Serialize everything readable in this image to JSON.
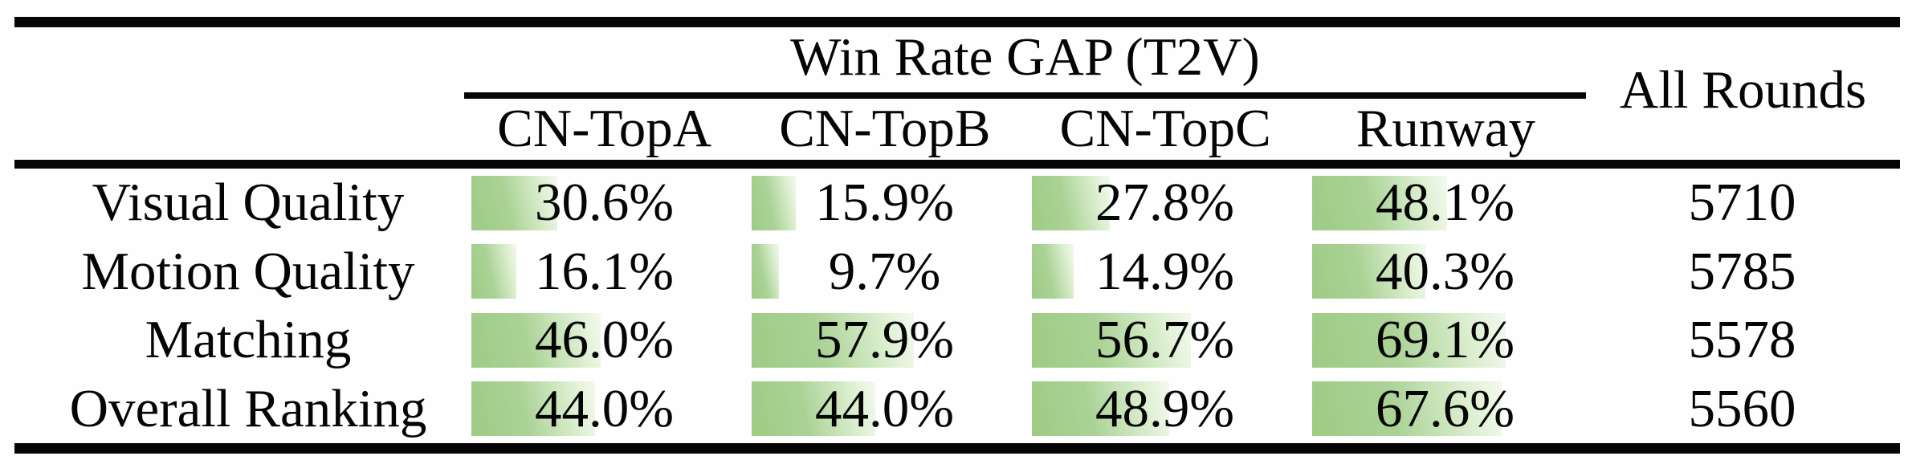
{
  "table": {
    "group_header": "Win Rate GAP (T2V)",
    "all_rounds_header": "All Rounds",
    "columns": [
      "CN-TopA",
      "CN-TopB",
      "CN-TopC",
      "Runway"
    ],
    "rows": [
      {
        "label": "Visual Quality",
        "cells": [
          {
            "text": "30.6%",
            "pct": 30.6
          },
          {
            "text": "15.9%",
            "pct": 15.9
          },
          {
            "text": "27.8%",
            "pct": 27.8
          },
          {
            "text": "48.1%",
            "pct": 48.1
          }
        ],
        "all_rounds": "5710"
      },
      {
        "label": "Motion Quality",
        "cells": [
          {
            "text": "16.1%",
            "pct": 16.1
          },
          {
            "text": "9.7%",
            "pct": 9.7
          },
          {
            "text": "14.9%",
            "pct": 14.9
          },
          {
            "text": "40.3%",
            "pct": 40.3
          }
        ],
        "all_rounds": "5785"
      },
      {
        "label": "Matching",
        "cells": [
          {
            "text": "46.0%",
            "pct": 46.0
          },
          {
            "text": "57.9%",
            "pct": 57.9
          },
          {
            "text": "56.7%",
            "pct": 56.7
          },
          {
            "text": "69.1%",
            "pct": 69.1
          }
        ],
        "all_rounds": "5578"
      },
      {
        "label": "Overall Ranking",
        "cells": [
          {
            "text": "44.0%",
            "pct": 44.0
          },
          {
            "text": "44.0%",
            "pct": 44.0
          },
          {
            "text": "48.9%",
            "pct": 48.9
          },
          {
            "text": "67.6%",
            "pct": 67.6
          }
        ],
        "all_rounds": "5560"
      }
    ],
    "bar_color": "#9ecb84",
    "bar_fade_color": "#f4f9f0",
    "rule_color": "#060606",
    "text_color": "#050505"
  },
  "chart_data": {
    "type": "table",
    "title": "Win Rate GAP (T2V)",
    "row_labels": [
      "Visual Quality",
      "Motion Quality",
      "Matching",
      "Overall Ranking"
    ],
    "columns": [
      "CN-TopA",
      "CN-TopB",
      "CN-TopC",
      "Runway",
      "All Rounds"
    ],
    "values": [
      [
        30.6,
        15.9,
        27.8,
        48.1,
        5710
      ],
      [
        16.1,
        9.7,
        14.9,
        40.3,
        5785
      ],
      [
        46.0,
        57.9,
        56.7,
        69.1,
        5578
      ],
      [
        44.0,
        44.0,
        48.9,
        67.6,
        5560
      ]
    ]
  }
}
